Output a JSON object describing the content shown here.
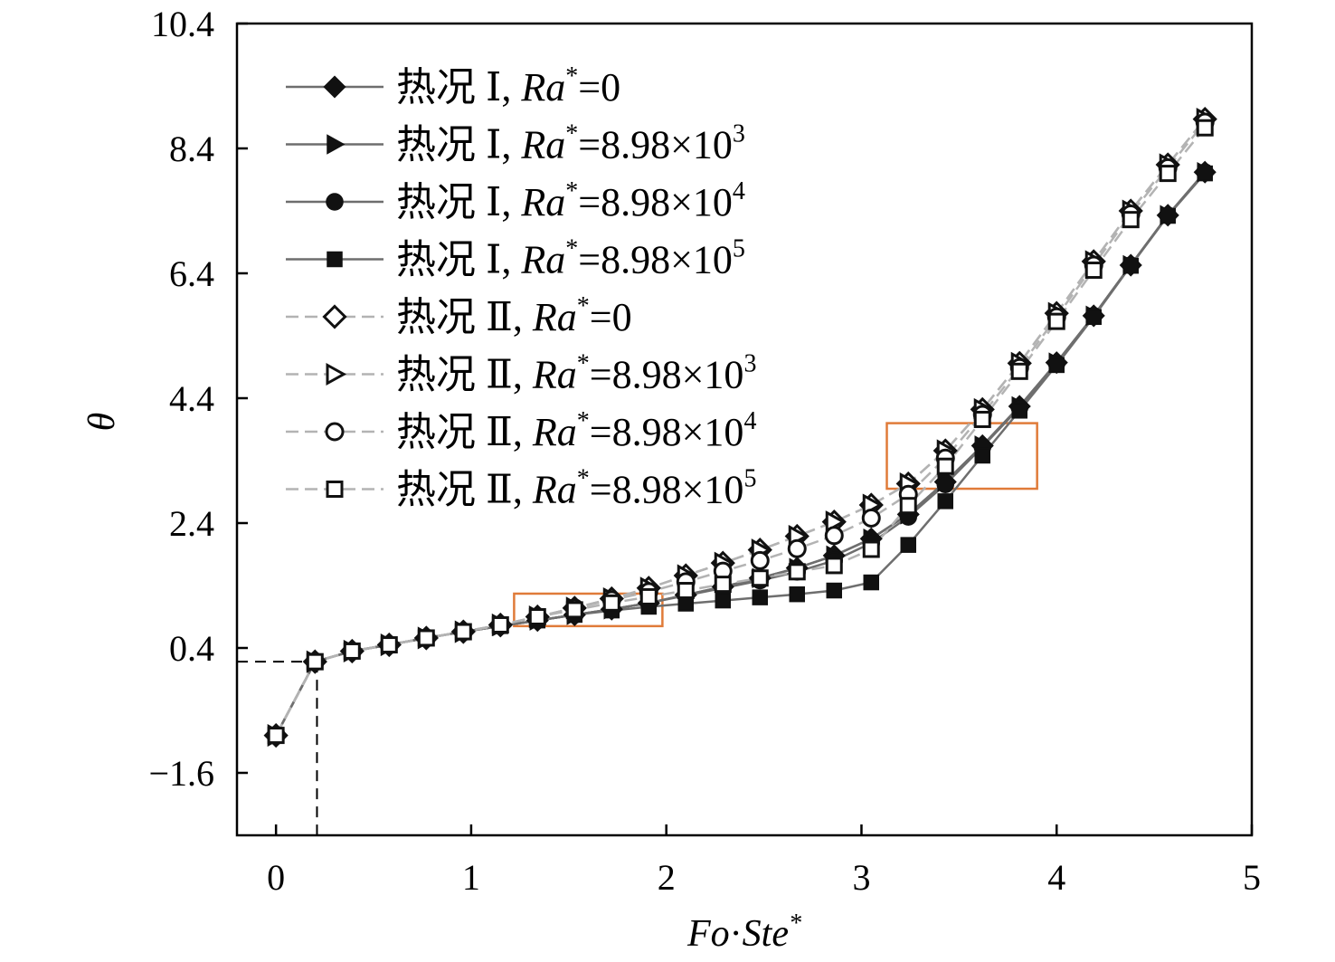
{
  "chart_data": {
    "type": "line",
    "title": "",
    "xlabel": "Fo·Ste*",
    "xlabel_parts": {
      "a": "Fo",
      "dot": "·",
      "b": "Ste",
      "sup": "*"
    },
    "ylabel": "θ",
    "xlim": [
      -0.2,
      5.0
    ],
    "ylim": [
      -2.6,
      10.4
    ],
    "xticks": [
      "0",
      "1",
      "2",
      "3",
      "4",
      "5"
    ],
    "yticks": [
      "−1.6",
      "0.4",
      "2.4",
      "4.4",
      "6.4",
      "8.4",
      "10.4"
    ],
    "grid": false,
    "legend_position": "top-left",
    "colors": {
      "case1": "#6e6e6e",
      "case2": "#b3b3b3",
      "highlight": "#e07b39",
      "marker": "#111111"
    },
    "reference_point": {
      "x": 0.21,
      "y": 0.18
    },
    "highlight_boxes": [
      {
        "x0": 1.22,
        "x1": 1.98,
        "y0": 0.75,
        "y1": 1.27
      },
      {
        "x0": 3.13,
        "x1": 3.9,
        "y0": 2.95,
        "y1": 4.0
      }
    ],
    "x": [
      0.0,
      0.2,
      0.39,
      0.58,
      0.77,
      0.96,
      1.15,
      1.34,
      1.53,
      1.72,
      1.91,
      2.1,
      2.29,
      2.48,
      2.67,
      2.86,
      3.05,
      3.24,
      3.43,
      3.62,
      3.81,
      4.0,
      4.19,
      4.38,
      4.57,
      4.76
    ],
    "series": [
      {
        "name": "热况 Ⅰ, Ra*=0",
        "legend": {
          "prefix": "热况 Ⅰ, ",
          "var": "Ra",
          "sup_star": "*",
          "value": "=0",
          "exp": ""
        },
        "group": 1,
        "marker": "diamond",
        "filled": true,
        "values": [
          -1.0,
          0.18,
          0.35,
          0.45,
          0.56,
          0.66,
          0.75,
          0.84,
          0.93,
          1.02,
          1.12,
          1.25,
          1.38,
          1.52,
          1.68,
          1.88,
          2.15,
          2.54,
          3.06,
          3.64,
          4.27,
          4.97,
          5.72,
          6.53,
          7.33,
          8.02
        ]
      },
      {
        "name": "热况 Ⅰ, Ra*=8.98×10³",
        "legend": {
          "prefix": "热况 Ⅰ, ",
          "var": "Ra",
          "sup_star": "*",
          "value": "=8.98×10",
          "exp": "3"
        },
        "group": 1,
        "marker": "triangle-right",
        "filled": true,
        "values": [
          -1.0,
          0.18,
          0.35,
          0.45,
          0.56,
          0.66,
          0.75,
          0.84,
          0.93,
          1.02,
          1.12,
          1.25,
          1.38,
          1.52,
          1.68,
          1.88,
          2.15,
          2.54,
          3.06,
          3.64,
          4.27,
          4.97,
          5.72,
          6.53,
          7.33,
          8.02
        ]
      },
      {
        "name": "热况 Ⅰ, Ra*=8.98×10⁴",
        "legend": {
          "prefix": "热况 Ⅰ, ",
          "var": "Ra",
          "sup_star": "*",
          "value": "=8.98×10",
          "exp": "4"
        },
        "group": 1,
        "marker": "circle",
        "filled": true,
        "values": [
          -1.0,
          0.18,
          0.35,
          0.45,
          0.56,
          0.66,
          0.75,
          0.84,
          0.93,
          1.02,
          1.12,
          1.24,
          1.36,
          1.48,
          1.62,
          1.8,
          2.08,
          2.5,
          3.02,
          3.62,
          4.25,
          4.96,
          5.72,
          6.53,
          7.33,
          8.02
        ]
      },
      {
        "name": "热况 Ⅰ, Ra*=8.98×10⁵",
        "legend": {
          "prefix": "热况 Ⅰ, ",
          "var": "Ra",
          "sup_star": "*",
          "value": "=8.98×10",
          "exp": "5"
        },
        "group": 1,
        "marker": "square",
        "filled": true,
        "values": [
          -1.0,
          0.18,
          0.35,
          0.45,
          0.56,
          0.66,
          0.75,
          0.84,
          0.93,
          1.0,
          1.06,
          1.11,
          1.16,
          1.21,
          1.26,
          1.32,
          1.45,
          2.05,
          2.75,
          3.48,
          4.2,
          4.93,
          5.7,
          6.52,
          7.32,
          8.0
        ]
      },
      {
        "name": "热况 Ⅱ, Ra*=0",
        "legend": {
          "prefix": "热况 Ⅱ, ",
          "var": "Ra",
          "sup_star": "*",
          "value": "=0",
          "exp": ""
        },
        "group": 2,
        "marker": "diamond",
        "filled": false,
        "values": [
          -1.0,
          0.18,
          0.35,
          0.45,
          0.56,
          0.66,
          0.77,
          0.9,
          1.04,
          1.19,
          1.36,
          1.56,
          1.76,
          1.97,
          2.19,
          2.42,
          2.69,
          3.03,
          3.56,
          4.22,
          4.96,
          5.76,
          6.59,
          7.4,
          8.14,
          8.87
        ]
      },
      {
        "name": "热况 Ⅱ, Ra*=8.98×10³",
        "legend": {
          "prefix": "热况 Ⅱ, ",
          "var": "Ra",
          "sup_star": "*",
          "value": "=8.98×10",
          "exp": "3"
        },
        "group": 2,
        "marker": "triangle-right",
        "filled": false,
        "values": [
          -1.0,
          0.18,
          0.35,
          0.45,
          0.56,
          0.66,
          0.77,
          0.9,
          1.04,
          1.19,
          1.36,
          1.56,
          1.76,
          1.97,
          2.19,
          2.42,
          2.69,
          3.03,
          3.56,
          4.22,
          4.96,
          5.76,
          6.59,
          7.4,
          8.14,
          8.87
        ]
      },
      {
        "name": "热况 Ⅱ, Ra*=8.98×10⁴",
        "legend": {
          "prefix": "热况 Ⅱ, ",
          "var": "Ra",
          "sup_star": "*",
          "value": "=8.98×10",
          "exp": "4"
        },
        "group": 2,
        "marker": "circle",
        "filled": false,
        "values": [
          -1.0,
          0.18,
          0.35,
          0.45,
          0.56,
          0.66,
          0.77,
          0.9,
          1.04,
          1.17,
          1.3,
          1.46,
          1.63,
          1.8,
          1.99,
          2.2,
          2.48,
          2.86,
          3.44,
          4.14,
          4.89,
          5.7,
          6.53,
          7.35,
          8.09,
          8.82
        ]
      },
      {
        "name": "热况 Ⅱ, Ra*=8.98×10⁵",
        "legend": {
          "prefix": "热况 Ⅱ, ",
          "var": "Ra",
          "sup_star": "*",
          "value": "=8.98×10",
          "exp": "5"
        },
        "group": 2,
        "marker": "square",
        "filled": false,
        "values": [
          -1.0,
          0.18,
          0.35,
          0.45,
          0.56,
          0.66,
          0.77,
          0.9,
          1.01,
          1.12,
          1.22,
          1.32,
          1.42,
          1.52,
          1.62,
          1.72,
          1.98,
          2.68,
          3.31,
          4.06,
          4.83,
          5.63,
          6.45,
          7.26,
          8.0,
          8.73
        ]
      }
    ]
  }
}
